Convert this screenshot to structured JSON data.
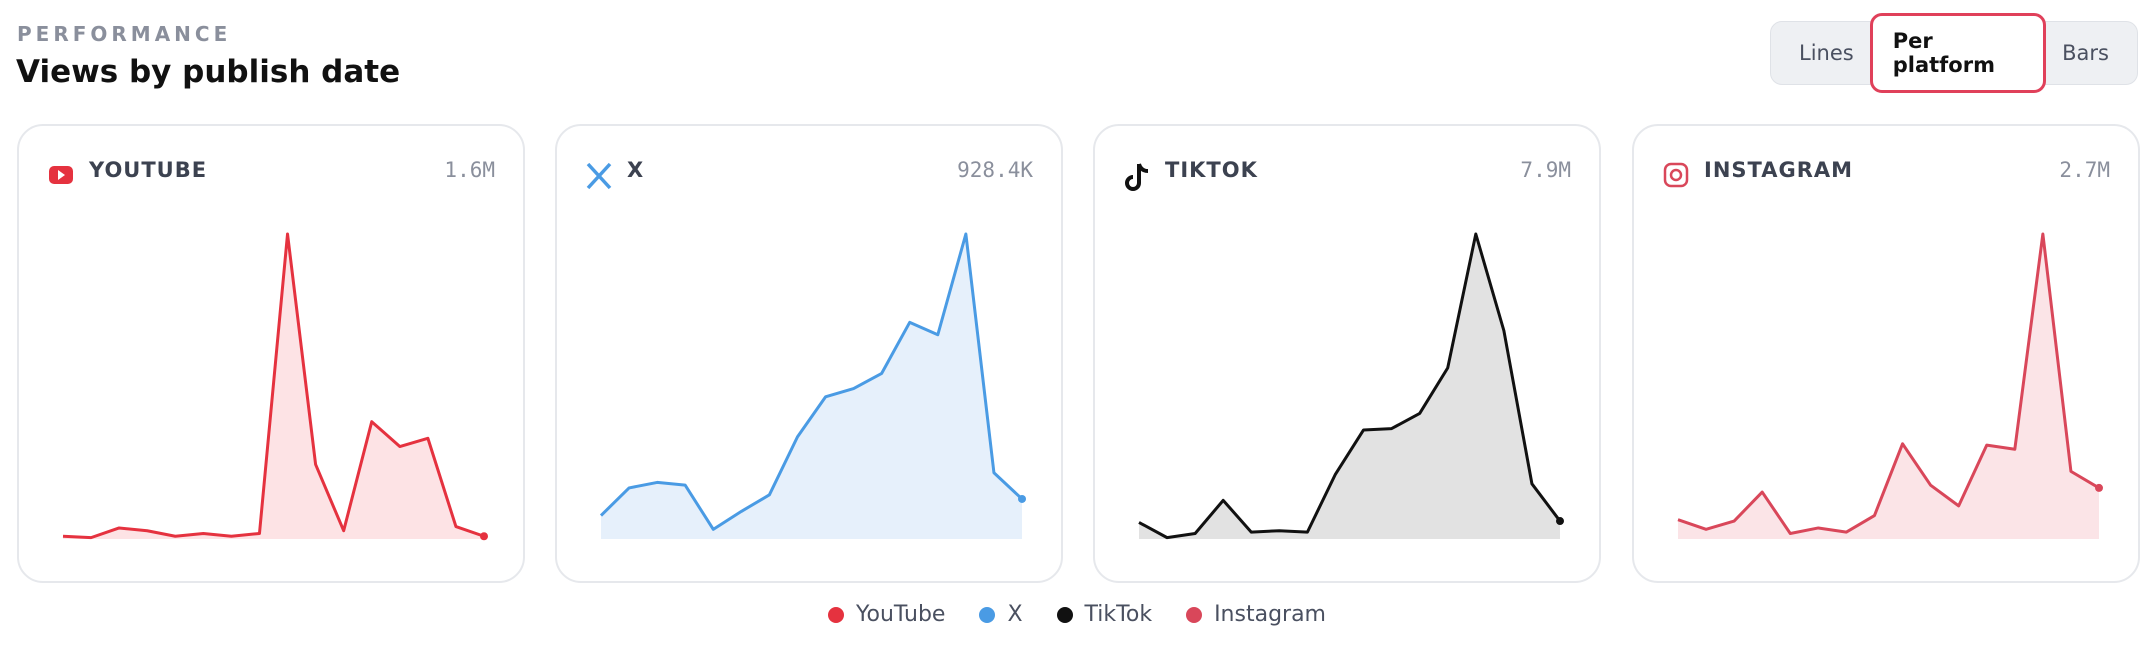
{
  "header": {
    "eyebrow": "PERFORMANCE",
    "title": "Views by publish date"
  },
  "toggle": {
    "options": [
      "Lines",
      "Per platform",
      "Bars"
    ],
    "active": 1
  },
  "chart_data": [
    {
      "type": "area",
      "title": "YOUTUBE",
      "total": "1.6M",
      "color": "#e5323f",
      "fill": "#fde3e5",
      "values": [
        2,
        1,
        8,
        6,
        2,
        4,
        2,
        4,
        221,
        54,
        6,
        85,
        67,
        73,
        9,
        2
      ]
    },
    {
      "type": "area",
      "title": "X",
      "total": "928.4K",
      "color": "#4a9be4",
      "fill": "#e6f0fb",
      "values": [
        17,
        37,
        41,
        39,
        7,
        20,
        32,
        74,
        103,
        109,
        120,
        157,
        148,
        221,
        48,
        29
      ]
    },
    {
      "type": "area",
      "title": "TIKTOK",
      "total": "7.9M",
      "color": "#111111",
      "fill": "#e2e2e2",
      "values": [
        12,
        1,
        4,
        28,
        5,
        6,
        5,
        47,
        79,
        80,
        91,
        124,
        221,
        151,
        40,
        13
      ]
    },
    {
      "type": "area",
      "title": "INSTAGRAM",
      "total": "2.7M",
      "color": "#d9475a",
      "fill": "#fbe4e7",
      "values": [
        14,
        7,
        13,
        34,
        4,
        8,
        5,
        17,
        69,
        39,
        24,
        68,
        65,
        221,
        49,
        37
      ]
    }
  ],
  "legend": [
    {
      "name": "YouTube",
      "color": "#e5323f"
    },
    {
      "name": "X",
      "color": "#4a9be4"
    },
    {
      "name": "TikTok",
      "color": "#111111"
    },
    {
      "name": "Instagram",
      "color": "#d9475a"
    }
  ]
}
